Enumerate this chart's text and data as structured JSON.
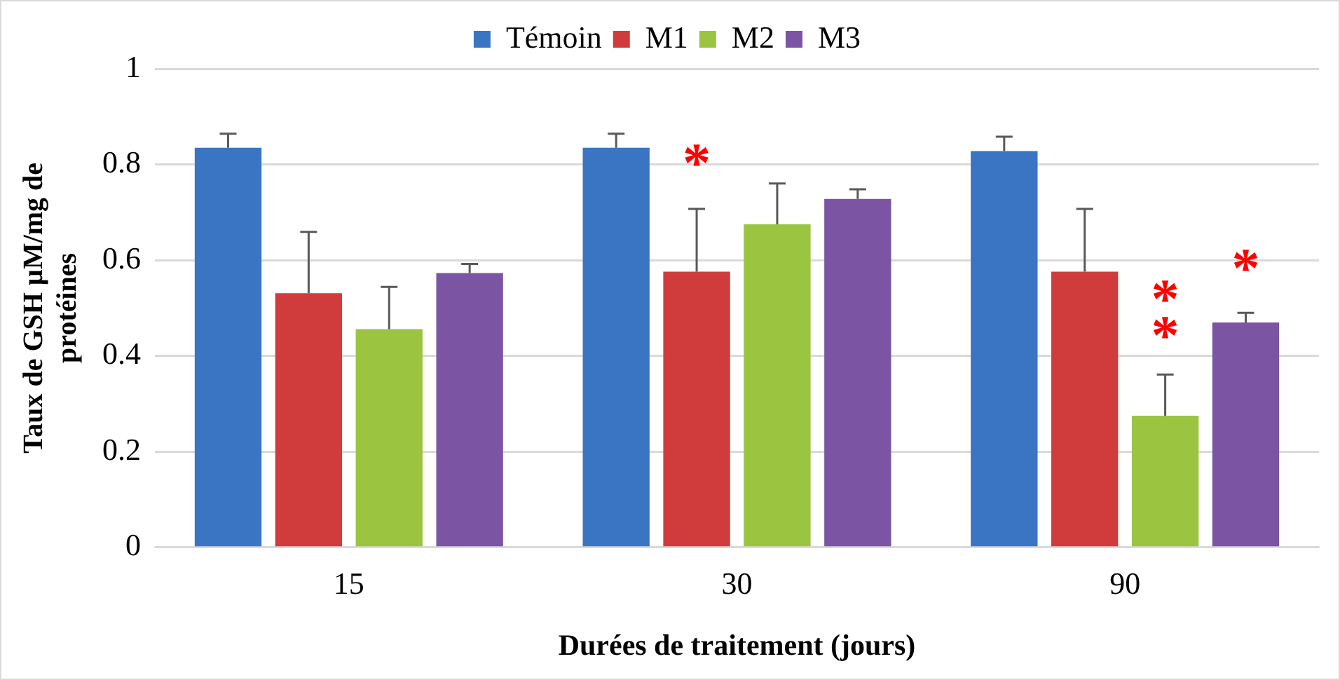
{
  "chart_data": {
    "type": "bar",
    "categories": [
      "15",
      "30",
      "90"
    ],
    "series": [
      {
        "name": "Témoin",
        "color": "#3a75c4",
        "values": [
          0.835,
          0.835,
          0.828
        ],
        "errors": [
          [
            0.835,
            0.864
          ],
          [
            0.835,
            0.864
          ],
          [
            0.828,
            0.858
          ]
        ]
      },
      {
        "name": "M1",
        "color": "#d03c3c",
        "values": [
          0.531,
          0.576,
          0.576
        ],
        "errors": [
          [
            0.531,
            0.659
          ],
          [
            0.576,
            0.707
          ],
          [
            0.576,
            0.707
          ]
        ]
      },
      {
        "name": "M2",
        "color": "#9bc441",
        "values": [
          0.456,
          0.675,
          0.275
        ],
        "errors": [
          [
            0.456,
            0.544
          ],
          [
            0.675,
            0.76
          ],
          [
            0.275,
            0.361
          ]
        ]
      },
      {
        "name": "M3",
        "color": "#7b55a3",
        "values": [
          0.573,
          0.728,
          0.47
        ],
        "errors": [
          [
            0.573,
            0.592
          ],
          [
            0.728,
            0.748
          ],
          [
            0.47,
            0.49
          ]
        ]
      }
    ],
    "xlabel": "Durées de traitement (jours)",
    "ylabel": "Taux de GSH µM/mg de protéines",
    "ylim": [
      0,
      1
    ],
    "yticks": [
      0,
      0.2,
      0.4,
      0.6,
      0.8,
      1
    ],
    "grid": "y",
    "legend": "top",
    "annotations": [
      "*",
      "**",
      "*"
    ]
  }
}
